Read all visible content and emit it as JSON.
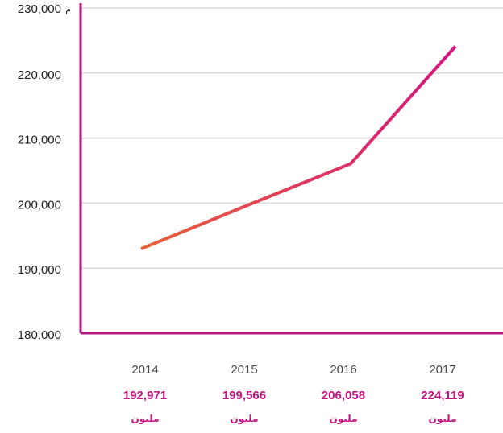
{
  "chart_data": {
    "type": "line",
    "y_unit_label": "م",
    "categories": [
      "2014",
      "2015",
      "2016",
      "2017"
    ],
    "values": [
      192971,
      199566,
      206058,
      224119
    ],
    "value_labels": [
      "192,971",
      "199,566",
      "206,058",
      "224,119"
    ],
    "value_unit_label": "مليون",
    "color_start": "#e8613a",
    "color_end": "#d4157f",
    "axis_color": "#b3197f",
    "ylim": [
      180000,
      230000
    ],
    "yticks": [
      {
        "value": 180000,
        "label": "180,000"
      },
      {
        "value": 190000,
        "label": "190,000"
      },
      {
        "value": 200000,
        "label": "200,000"
      },
      {
        "value": 210000,
        "label": "210,000"
      },
      {
        "value": 220000,
        "label": "220,000"
      },
      {
        "value": 230000,
        "label": "230,000"
      }
    ],
    "grid": true
  }
}
